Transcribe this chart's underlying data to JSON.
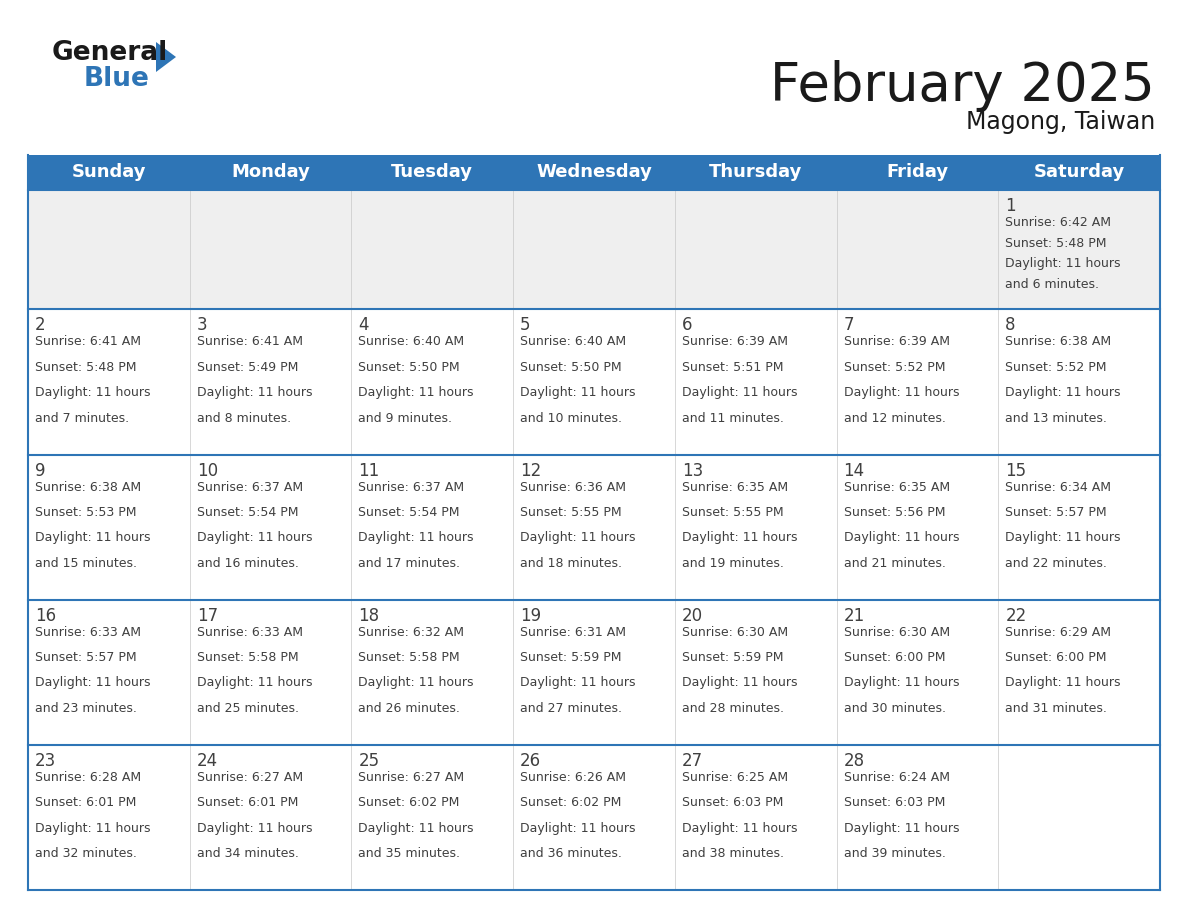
{
  "title": "February 2025",
  "subtitle": "Magong, Taiwan",
  "days_of_week": [
    "Sunday",
    "Monday",
    "Tuesday",
    "Wednesday",
    "Thursday",
    "Friday",
    "Saturday"
  ],
  "header_bg": "#2E75B6",
  "header_text": "#FFFFFF",
  "cell_bg_light": "#EFEFEF",
  "cell_bg_white": "#FFFFFF",
  "divider_color": "#2E75B6",
  "text_color": "#404040",
  "day_num_color": "#404040",
  "calendar_data": [
    [
      null,
      null,
      null,
      null,
      null,
      null,
      {
        "day": 1,
        "sunrise": "6:42 AM",
        "sunset": "5:48 PM",
        "daylight": "11 hours and 6 minutes."
      }
    ],
    [
      {
        "day": 2,
        "sunrise": "6:41 AM",
        "sunset": "5:48 PM",
        "daylight": "11 hours and 7 minutes."
      },
      {
        "day": 3,
        "sunrise": "6:41 AM",
        "sunset": "5:49 PM",
        "daylight": "11 hours and 8 minutes."
      },
      {
        "day": 4,
        "sunrise": "6:40 AM",
        "sunset": "5:50 PM",
        "daylight": "11 hours and 9 minutes."
      },
      {
        "day": 5,
        "sunrise": "6:40 AM",
        "sunset": "5:50 PM",
        "daylight": "11 hours and 10 minutes."
      },
      {
        "day": 6,
        "sunrise": "6:39 AM",
        "sunset": "5:51 PM",
        "daylight": "11 hours and 11 minutes."
      },
      {
        "day": 7,
        "sunrise": "6:39 AM",
        "sunset": "5:52 PM",
        "daylight": "11 hours and 12 minutes."
      },
      {
        "day": 8,
        "sunrise": "6:38 AM",
        "sunset": "5:52 PM",
        "daylight": "11 hours and 13 minutes."
      }
    ],
    [
      {
        "day": 9,
        "sunrise": "6:38 AM",
        "sunset": "5:53 PM",
        "daylight": "11 hours and 15 minutes."
      },
      {
        "day": 10,
        "sunrise": "6:37 AM",
        "sunset": "5:54 PM",
        "daylight": "11 hours and 16 minutes."
      },
      {
        "day": 11,
        "sunrise": "6:37 AM",
        "sunset": "5:54 PM",
        "daylight": "11 hours and 17 minutes."
      },
      {
        "day": 12,
        "sunrise": "6:36 AM",
        "sunset": "5:55 PM",
        "daylight": "11 hours and 18 minutes."
      },
      {
        "day": 13,
        "sunrise": "6:35 AM",
        "sunset": "5:55 PM",
        "daylight": "11 hours and 19 minutes."
      },
      {
        "day": 14,
        "sunrise": "6:35 AM",
        "sunset": "5:56 PM",
        "daylight": "11 hours and 21 minutes."
      },
      {
        "day": 15,
        "sunrise": "6:34 AM",
        "sunset": "5:57 PM",
        "daylight": "11 hours and 22 minutes."
      }
    ],
    [
      {
        "day": 16,
        "sunrise": "6:33 AM",
        "sunset": "5:57 PM",
        "daylight": "11 hours and 23 minutes."
      },
      {
        "day": 17,
        "sunrise": "6:33 AM",
        "sunset": "5:58 PM",
        "daylight": "11 hours and 25 minutes."
      },
      {
        "day": 18,
        "sunrise": "6:32 AM",
        "sunset": "5:58 PM",
        "daylight": "11 hours and 26 minutes."
      },
      {
        "day": 19,
        "sunrise": "6:31 AM",
        "sunset": "5:59 PM",
        "daylight": "11 hours and 27 minutes."
      },
      {
        "day": 20,
        "sunrise": "6:30 AM",
        "sunset": "5:59 PM",
        "daylight": "11 hours and 28 minutes."
      },
      {
        "day": 21,
        "sunrise": "6:30 AM",
        "sunset": "6:00 PM",
        "daylight": "11 hours and 30 minutes."
      },
      {
        "day": 22,
        "sunrise": "6:29 AM",
        "sunset": "6:00 PM",
        "daylight": "11 hours and 31 minutes."
      }
    ],
    [
      {
        "day": 23,
        "sunrise": "6:28 AM",
        "sunset": "6:01 PM",
        "daylight": "11 hours and 32 minutes."
      },
      {
        "day": 24,
        "sunrise": "6:27 AM",
        "sunset": "6:01 PM",
        "daylight": "11 hours and 34 minutes."
      },
      {
        "day": 25,
        "sunrise": "6:27 AM",
        "sunset": "6:02 PM",
        "daylight": "11 hours and 35 minutes."
      },
      {
        "day": 26,
        "sunrise": "6:26 AM",
        "sunset": "6:02 PM",
        "daylight": "11 hours and 36 minutes."
      },
      {
        "day": 27,
        "sunrise": "6:25 AM",
        "sunset": "6:03 PM",
        "daylight": "11 hours and 38 minutes."
      },
      {
        "day": 28,
        "sunrise": "6:24 AM",
        "sunset": "6:03 PM",
        "daylight": "11 hours and 39 minutes."
      },
      null
    ]
  ]
}
